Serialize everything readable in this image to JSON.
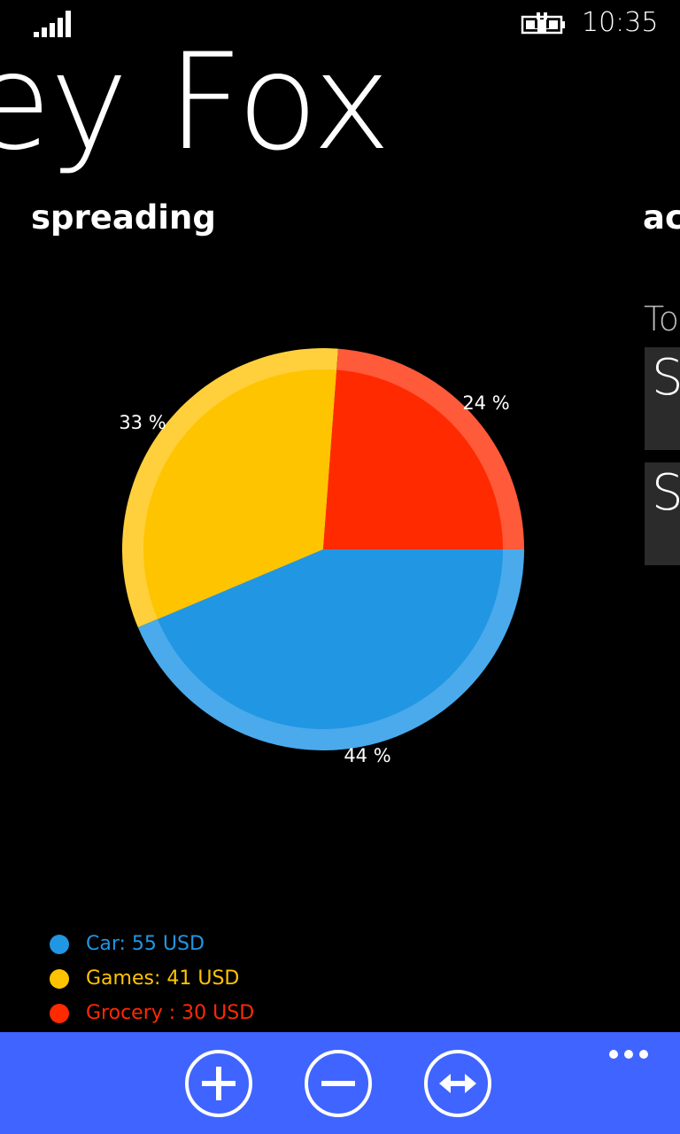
{
  "status_bar": {
    "time": "10:35",
    "signal_icon": "signal-strength-icon",
    "battery_icon": "battery-charging-icon"
  },
  "header": {
    "title": "ey Fox"
  },
  "pivot": {
    "current": "spreading",
    "next": "acc"
  },
  "peek": {
    "label": "To",
    "cards": [
      {
        "text": "Sa"
      },
      {
        "text": "Sa"
      }
    ]
  },
  "chart_data": {
    "type": "pie",
    "slices": [
      {
        "label": "Car",
        "value": 55,
        "percent_label": "44 %",
        "color": "#2196e3",
        "rim": "#4aaaeb"
      },
      {
        "label": "Games",
        "value": 41,
        "percent_label": "33 %",
        "color": "#ffc400",
        "rim": "#ffd03b"
      },
      {
        "label": "Grocery",
        "value": 30,
        "percent_label": "24 %",
        "color": "#ff2a00",
        "rim": "#ff5a3a"
      }
    ]
  },
  "legend": {
    "items": [
      {
        "text": "Car: 55 USD",
        "color": "#2196e3"
      },
      {
        "text": "Games: 41 USD",
        "color": "#ffc400"
      },
      {
        "text": "Grocery : 30 USD",
        "color": "#ff2a00"
      }
    ]
  },
  "app_bar": {
    "buttons": [
      {
        "icon": "add-icon"
      },
      {
        "icon": "remove-icon"
      },
      {
        "icon": "resize-horizontal-icon"
      }
    ],
    "more_icon": "more-ellipsis-icon"
  }
}
